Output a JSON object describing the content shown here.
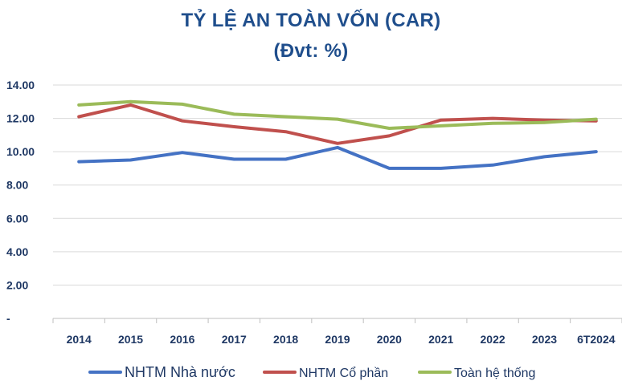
{
  "chart_data": {
    "type": "line",
    "title": "TỶ LỆ AN TOÀN VỐN (CAR)",
    "subtitle": "(Đvt: %)",
    "categories": [
      "2014",
      "2015",
      "2016",
      "2017",
      "2018",
      "2019",
      "2020",
      "2021",
      "2022",
      "2023",
      "6T2024"
    ],
    "y_tick_labels": [
      "-",
      "2.00",
      "4.00",
      "6.00",
      "8.00",
      "10.00",
      "12.00",
      "14.00"
    ],
    "ylim": [
      0,
      14
    ],
    "grid": true,
    "legend_position": "bottom",
    "series": [
      {
        "name": "NHTM Nhà nước",
        "color": "#4472c4",
        "values": [
          9.4,
          9.5,
          9.95,
          9.55,
          9.55,
          10.25,
          9.0,
          9.0,
          9.2,
          9.7,
          10.0
        ]
      },
      {
        "name": "NHTM Cổ phần",
        "color": "#c0504d",
        "values": [
          12.1,
          12.8,
          11.85,
          11.5,
          11.2,
          10.5,
          10.95,
          11.9,
          12.0,
          11.9,
          11.85
        ]
      },
      {
        "name": "Toàn hệ thống",
        "color": "#9bbb59",
        "values": [
          12.8,
          13.0,
          12.85,
          12.25,
          12.1,
          11.95,
          11.4,
          11.55,
          11.7,
          11.75,
          11.95
        ]
      }
    ]
  }
}
